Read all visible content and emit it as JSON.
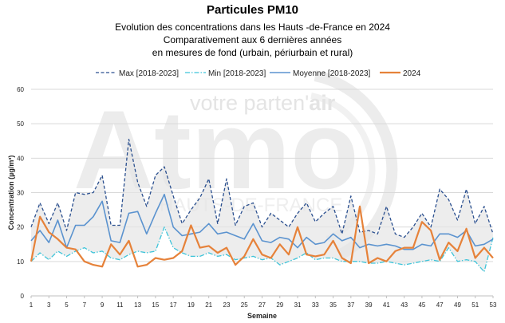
{
  "header": {
    "title": "Particules PM10",
    "subtitle_1": "Evolution des concentrations dans les Hauts -de-France en 2024",
    "subtitle_2": "Comparativement aux 6 dernières années",
    "subtitle_3": "en mesures de fond (urbain, périurbain et rural)"
  },
  "watermark": {
    "tagline_prefix": "votre parten'",
    "tagline_emphasis": "air",
    "brand": "Atmo",
    "region": "HAUTS-DE-FRANCE"
  },
  "colors": {
    "max": "#2a4f8f",
    "min": "#3fc4d9",
    "mean": "#5b93cf",
    "year2024": "#e6823a",
    "band_fill": "#e6e6e6",
    "grid": "#d9d9d9"
  },
  "chart_data": {
    "type": "line",
    "xlabel": "Semaine",
    "ylabel": "Concentration (µg/m³)",
    "xlim": [
      1,
      53
    ],
    "ylim": [
      0,
      60
    ],
    "y_ticks": [
      0,
      10,
      20,
      30,
      40,
      50,
      60
    ],
    "x_ticks": [
      1,
      3,
      5,
      7,
      9,
      11,
      13,
      15,
      17,
      19,
      21,
      23,
      25,
      27,
      29,
      31,
      33,
      35,
      37,
      39,
      41,
      43,
      45,
      47,
      49,
      51,
      53
    ],
    "grid": "horizontal",
    "legend_position": "top",
    "x": [
      1,
      2,
      3,
      4,
      5,
      6,
      7,
      8,
      9,
      10,
      11,
      12,
      13,
      14,
      15,
      16,
      17,
      18,
      19,
      20,
      21,
      22,
      23,
      24,
      25,
      26,
      27,
      28,
      29,
      30,
      31,
      32,
      33,
      34,
      35,
      36,
      37,
      38,
      39,
      40,
      41,
      42,
      43,
      44,
      45,
      46,
      47,
      48,
      49,
      50,
      51,
      52,
      53
    ],
    "series": [
      {
        "name": "Max [2018-2023]",
        "style": "dashed",
        "values": [
          20,
          27,
          21,
          27,
          19,
          30,
          29.5,
          30,
          35,
          20.5,
          20.5,
          45.5,
          33,
          26,
          35,
          37.5,
          29,
          21,
          25,
          28.5,
          34,
          21,
          34,
          20.5,
          26,
          27,
          20,
          24,
          22,
          20,
          24,
          27,
          21.5,
          24,
          26,
          18,
          29,
          18.5,
          19,
          18,
          26,
          18,
          17,
          20,
          24,
          20,
          31,
          28,
          22,
          31,
          21,
          26,
          18
        ]
      },
      {
        "name": "Min [2018-2023]",
        "style": "dash-dot",
        "values": [
          10,
          12.5,
          10.5,
          13,
          11.5,
          13,
          14,
          12.5,
          13,
          11,
          10.5,
          12,
          13,
          12.5,
          13,
          20,
          14,
          12.5,
          11.5,
          11.5,
          12.5,
          11.5,
          12,
          10.5,
          11,
          11.5,
          10.5,
          11,
          9,
          10,
          11,
          12.5,
          10.5,
          11,
          11,
          10,
          10,
          10,
          9.5,
          9.5,
          10,
          9.5,
          9,
          9.5,
          10,
          10.5,
          10,
          14,
          10,
          10.5,
          10,
          7,
          17
        ]
      },
      {
        "name": "Moyenne [2018-2023]",
        "style": "solid",
        "values": [
          16,
          19,
          15.5,
          22,
          14,
          20.5,
          20.5,
          23,
          27.5,
          16,
          15.5,
          24,
          24.5,
          18,
          24,
          29.5,
          20,
          17.5,
          18,
          18.5,
          21,
          18,
          18.5,
          17.5,
          16.5,
          21,
          16,
          15.5,
          17,
          16.5,
          14,
          17,
          15,
          15.5,
          18,
          16,
          17,
          14,
          15,
          14.5,
          15,
          14.5,
          13.5,
          13.5,
          15,
          14.5,
          18,
          18,
          17,
          19,
          14.5,
          15,
          16.5
        ]
      },
      {
        "name": "2024",
        "style": "solid-thick",
        "values": [
          10,
          23,
          18.5,
          16.5,
          14,
          13.5,
          10,
          9,
          8.5,
          15,
          12,
          16,
          8.5,
          9,
          11,
          10.5,
          11,
          13,
          20.5,
          14,
          14.5,
          12.5,
          14,
          9,
          11.5,
          16.5,
          12,
          11,
          15,
          12,
          20,
          12,
          11.5,
          12,
          16,
          11,
          9.5,
          26,
          9.5,
          11,
          10,
          13,
          14,
          14,
          21.5,
          19,
          10.5,
          15.5,
          13,
          19.5,
          11,
          14,
          11
        ]
      }
    ]
  }
}
